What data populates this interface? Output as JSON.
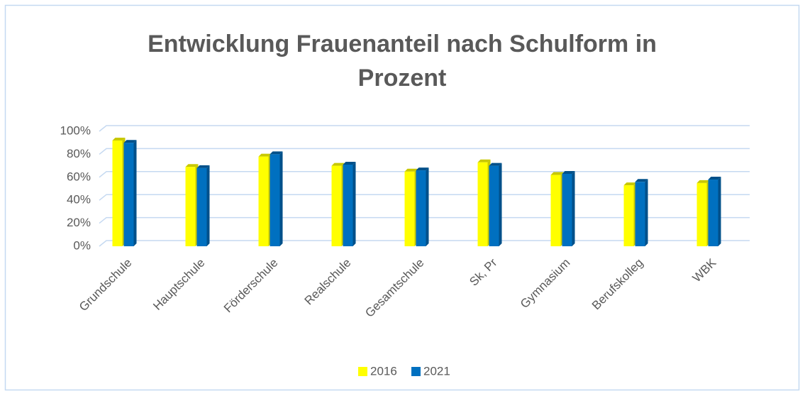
{
  "chart_data": {
    "type": "bar",
    "title": "Entwicklung Frauenanteil nach Schulform in Prozent",
    "categories": [
      "Grundschule",
      "Hauptschule",
      "Förderschule",
      "Realschule",
      "Gesamtschule",
      "Sk, Pr",
      "Gymnasium",
      "Berufskolleg",
      "WBK"
    ],
    "series": [
      {
        "name": "2016",
        "color": "#ffff00",
        "values": [
          92,
          69,
          78,
          70,
          65,
          73,
          62,
          53,
          55
        ]
      },
      {
        "name": "2021",
        "color": "#0070c0",
        "values": [
          90,
          68,
          80,
          71,
          66,
          70,
          63,
          56,
          58
        ]
      }
    ],
    "ylim": [
      0,
      100
    ],
    "yticks": [
      {
        "value": 0,
        "label": "0%"
      },
      {
        "value": 20,
        "label": "20%"
      },
      {
        "value": 40,
        "label": "40%"
      },
      {
        "value": 60,
        "label": "60%"
      },
      {
        "value": 80,
        "label": "80%"
      },
      {
        "value": 100,
        "label": "100%"
      }
    ],
    "grid": true,
    "legend": "bottom"
  }
}
